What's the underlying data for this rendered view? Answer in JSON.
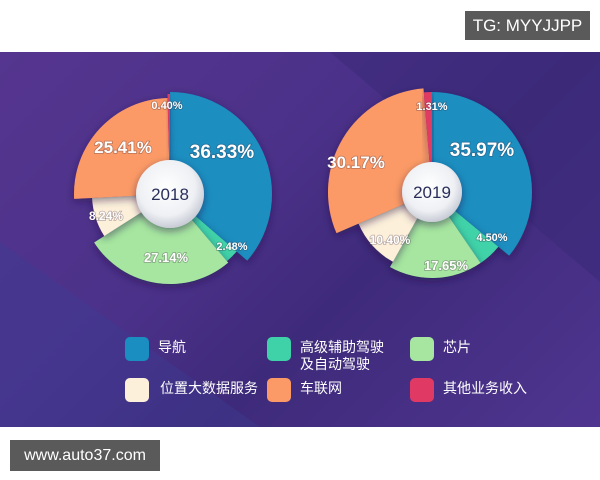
{
  "watermark_top": "TG: MYYJJPP",
  "watermark_bottom": "www.auto37.com",
  "legend": [
    {
      "label": "导航",
      "color": "#1a8ec0"
    },
    {
      "label": "高级辅助驾驶\n及自动驾驶",
      "label_line1": "高级辅助驾驶",
      "label_line2": "及自动驾驶",
      "color": "#3fd2a8"
    },
    {
      "label": "芯片",
      "color": "#a6e6a0"
    },
    {
      "label": "位置大数据服务",
      "color": "#fdf0da"
    },
    {
      "label": "车联网",
      "color": "#fb9a66"
    },
    {
      "label": "其他业务收入",
      "color": "#e03a64"
    }
  ],
  "chart_data": [
    {
      "type": "pie",
      "title": "2018",
      "categories": [
        "导航",
        "高级辅助驾驶及自动驾驶",
        "芯片",
        "位置大数据服务",
        "车联网",
        "其他业务收入"
      ],
      "values": [
        36.33,
        2.48,
        27.14,
        8.24,
        25.41,
        0.4
      ],
      "labels": [
        "36.33%",
        "2.48%",
        "27.14%",
        "8.24%",
        "25.41%",
        "0.40%"
      ]
    },
    {
      "type": "pie",
      "title": "2019",
      "categories": [
        "导航",
        "高级辅助驾驶及自动驾驶",
        "芯片",
        "位置大数据服务",
        "车联网",
        "其他业务收入"
      ],
      "values": [
        35.97,
        4.5,
        17.65,
        10.4,
        30.17,
        1.31
      ],
      "labels": [
        "35.97%",
        "4.50%",
        "17.65%",
        "10.40%",
        "30.17%",
        "1.31%"
      ]
    }
  ]
}
